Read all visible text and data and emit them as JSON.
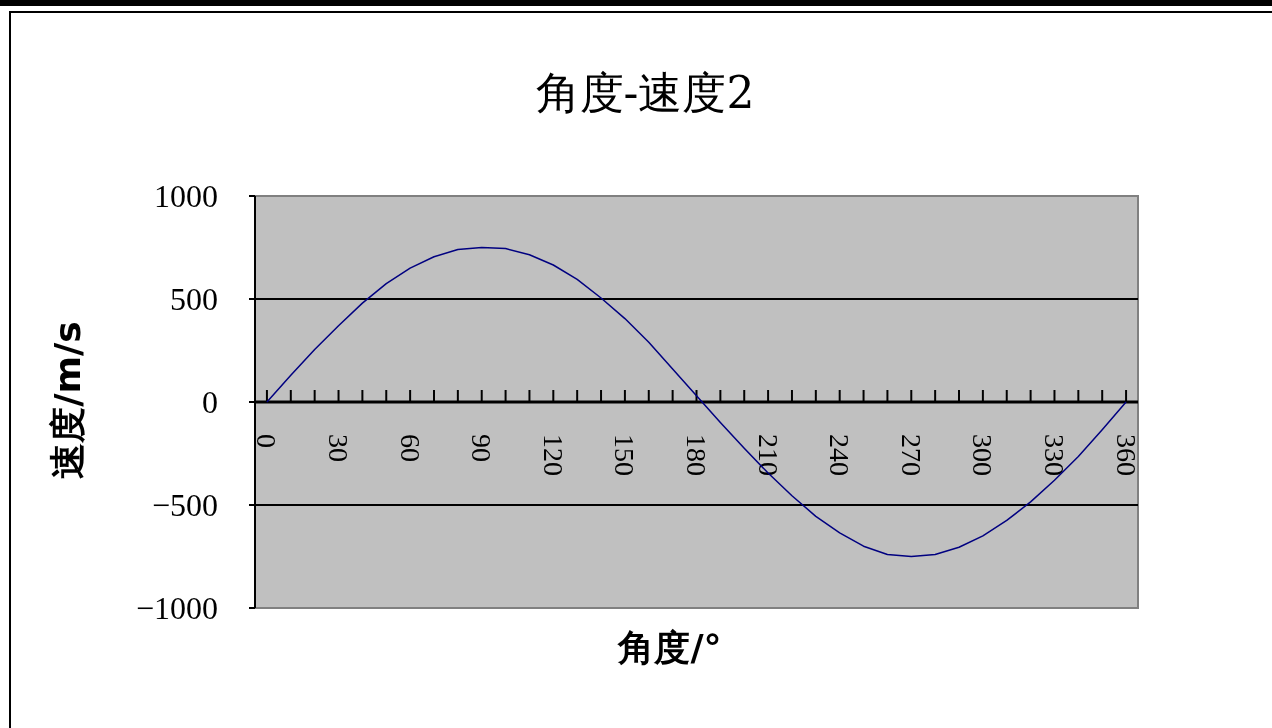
{
  "chart_data": {
    "type": "line",
    "title": "角度-速度2",
    "xlabel": "角度/°",
    "ylabel": "速度/m/s",
    "categories": [
      "0",
      null,
      null,
      "30",
      null,
      null,
      "60",
      null,
      null,
      "90",
      null,
      null,
      "120",
      null,
      null,
      "150",
      null,
      null,
      "180",
      null,
      null,
      "210",
      null,
      null,
      "240",
      null,
      null,
      "270",
      null,
      null,
      "300",
      null,
      null,
      "330",
      null,
      null,
      "360"
    ],
    "series": [
      {
        "color": "#000080",
        "values": [
          0,
          130,
          255,
          370,
          480,
          575,
          650,
          705,
          740,
          750,
          745,
          715,
          665,
          595,
          505,
          405,
          290,
          160,
          30,
          -100,
          -225,
          -345,
          -455,
          -555,
          -635,
          -700,
          -740,
          -750,
          -740,
          -705,
          -650,
          -575,
          -485,
          -380,
          -265,
          -135,
          0
        ]
      }
    ],
    "ylim": [
      -1000,
      1000
    ],
    "yticks": [
      -1000,
      -500,
      0,
      500,
      1000
    ],
    "grid": "y",
    "marker": "none"
  }
}
